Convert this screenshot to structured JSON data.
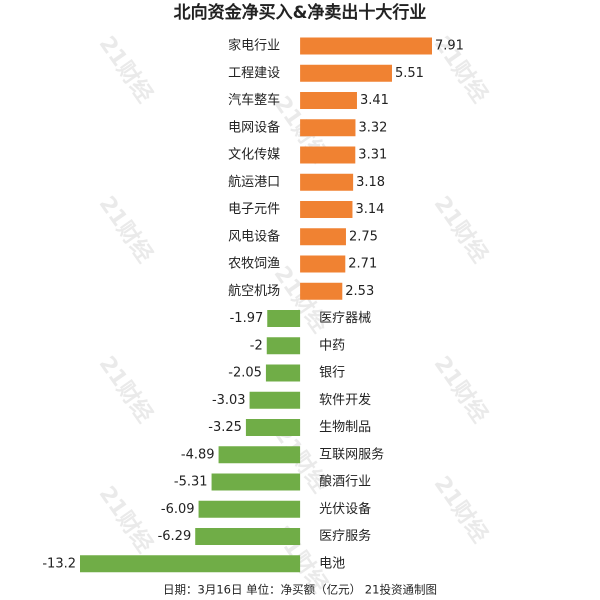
{
  "chart_data": {
    "type": "bar",
    "orientation": "horizontal",
    "title": "北向资金净买入&净卖出十大行业",
    "categories": [
      "家电行业",
      "工程建设",
      "汽车整车",
      "电网设备",
      "文化传媒",
      "航运港口",
      "电子元件",
      "风电设备",
      "农牧饲渔",
      "航空机场",
      "医疗器械",
      "中药",
      "银行",
      "软件开发",
      "生物制品",
      "互联网服务",
      "酿酒行业",
      "光伏设备",
      "医疗服务",
      "电池"
    ],
    "values": [
      7.91,
      5.51,
      3.41,
      3.32,
      3.31,
      3.18,
      3.14,
      2.75,
      2.71,
      2.53,
      -1.97,
      -2,
      -2.05,
      -3.03,
      -3.25,
      -4.89,
      -5.31,
      -6.09,
      -6.29,
      -13.2
    ],
    "positive_color": "#f08232",
    "negative_color": "#70ad47",
    "note": "日期：3月16日 单位：净买额（亿元） 21投资通制图",
    "watermark": "21财经"
  }
}
